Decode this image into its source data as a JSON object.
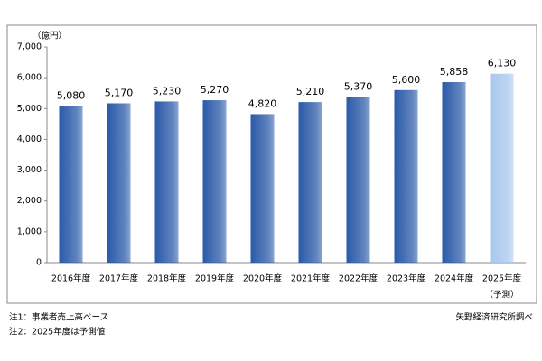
{
  "chart_data": {
    "type": "bar",
    "unit_label": "（億円）",
    "categories": [
      "2016年度",
      "2017年度",
      "2018年度",
      "2019年度",
      "2020年度",
      "2021年度",
      "2022年度",
      "2023年度",
      "2024年度",
      "2025年度"
    ],
    "category_note": "（予測）",
    "values": [
      5080,
      5170,
      5230,
      5270,
      4820,
      5210,
      5370,
      5600,
      5858,
      6130
    ],
    "value_labels": [
      "5,080",
      "5,170",
      "5,230",
      "5,270",
      "4,820",
      "5,210",
      "5,370",
      "5,600",
      "5,858",
      "6,130"
    ],
    "colors": [
      "#2a5aa8",
      "#2a5aa8",
      "#2a5aa8",
      "#2a5aa8",
      "#2a5aa8",
      "#2a5aa8",
      "#2a5aa8",
      "#2a5aa8",
      "#2a5aa8",
      "#a9c6ee"
    ],
    "ylim": [
      0,
      7000
    ],
    "yticks": [
      0,
      {
        "value": 1000,
        "label": "1,000"
      },
      {
        "value": 2000,
        "label": "2,000"
      },
      {
        "value": 3000,
        "label": "3,000"
      },
      {
        "value": 4000,
        "label": "4,000"
      },
      {
        "value": 5000,
        "label": "5,000"
      },
      {
        "value": 6000,
        "label": "6,000"
      },
      {
        "value": 7000,
        "label": "7,000"
      }
    ],
    "grid": false,
    "notes": [
      "注1：事業者売上高ベース",
      "注2：2025年度は予測値"
    ],
    "source": "矢野経済研究所調べ"
  }
}
